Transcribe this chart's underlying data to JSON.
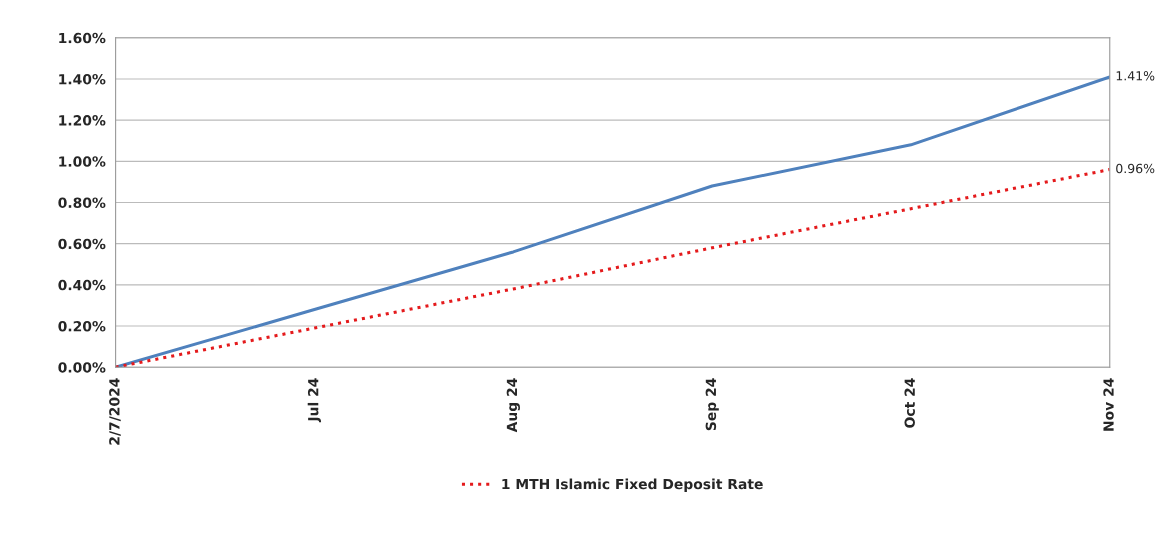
{
  "chart_data": {
    "type": "line",
    "categories": [
      "2/7/2024",
      "Jul 24",
      "Aug 24",
      "Sep 24",
      "Oct 24",
      "Nov 24"
    ],
    "series": [
      {
        "color": "#4f81bd",
        "line_style": "solid",
        "values": [
          0,
          0.28,
          0.56,
          0.88,
          1.08,
          1.41
        ],
        "value_labels": [
          null,
          null,
          null,
          null,
          null,
          "1.41%"
        ]
      },
      {
        "name": "1 MTH Islamic Fixed Deposit Rate",
        "color": "#e41a1c",
        "line_style": "dotted",
        "values": [
          0,
          0.19,
          0.38,
          0.58,
          0.77,
          0.96
        ],
        "value_labels": [
          null,
          null,
          null,
          null,
          null,
          "0.96%"
        ]
      }
    ],
    "ylim": [
      0,
      1.6
    ],
    "yticks": [
      {
        "value": 0,
        "label": "0.00%"
      },
      {
        "value": 0.2,
        "label": "0.20%"
      },
      {
        "value": 0.4,
        "label": "0.40%"
      },
      {
        "value": 0.6,
        "label": "0.60%"
      },
      {
        "value": 0.8,
        "label": "0.80%"
      },
      {
        "value": 1.0,
        "label": "1.00%"
      },
      {
        "value": 1.2,
        "label": "1.20%"
      },
      {
        "value": 1.4,
        "label": "1.40%"
      },
      {
        "value": 1.6,
        "label": "1.60%"
      }
    ],
    "grid": "y",
    "legend": "bottom",
    "marker": "none"
  }
}
